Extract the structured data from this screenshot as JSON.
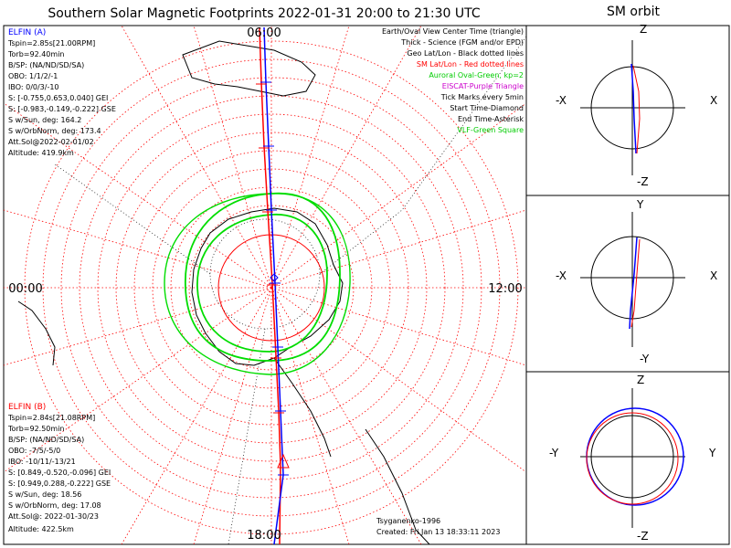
{
  "title": "Southern Solar Magnetic Footprints 2022-01-31 20:00 to 21:30 UTC",
  "orbit_title": "SM orbit",
  "clock_labels": {
    "top": "06:00",
    "left": "00:00",
    "right": "12:00",
    "bottom": "18:00"
  },
  "legend": {
    "earth_center": "Earth/Oval View Center Time (triangle)",
    "thick": "Thick - Science (FGM and/or EPD)",
    "geo": "Geo Lat/Lon - Black dotted lines",
    "sm": "SM Lat/Lon - Red dotted lines",
    "oval": "Auroral Oval-Green, kp=2",
    "eiscat": "EISCAT-Purple Triangle",
    "ticks": "Tick Marks every 5min",
    "start": "Start Time-Diamond",
    "end": "End Time-Asterisk",
    "vlf": "VLF-Green Square"
  },
  "elfin_a": {
    "name": "ELFIN (A)",
    "lines": [
      "Tspin=2.85s[21.00RPM]",
      "Torb=92.40min",
      "B/SP: (NA/ND/SD/SA)",
      "OBO: 1/1/2/-1",
      "IBO: 0/0/3/-10",
      "S: [-0.755,0.653,0.040] GEI",
      "S: [-0.983,-0.149,-0.222] GSE",
      "S w/Sun, deg: 164.2",
      "S w/OrbNorm, deg: 173.4",
      "Att.Sol@2022-02-01/02",
      "Altitude: 419.9km"
    ],
    "color": "#0000ff"
  },
  "elfin_b": {
    "name": "ELFIN (B)",
    "lines": [
      "Tspin=2.84s[21.08RPM]",
      "Torb=92.50min",
      "B/SP: (NA/ND/SD/SA)",
      "OBO: -7/5/-5/0",
      "IBO: -10/11/-13/21",
      "S: [0.849,-0.520,-0.096] GEI",
      "S: [0.949,0.288,-0.222] GSE",
      "S w/Sun, deg: 18.56",
      "S w/OrbNorm, deg: 17.08",
      "Att.Sol@: 2022-01-30/23",
      "Altitude: 422.5km"
    ],
    "color": "#ff0000"
  },
  "credits": {
    "author": "Tsyganenko-1996",
    "created": "Created: Fri Jan 13 18:33:11 2023"
  },
  "panels": [
    {
      "top": "Z",
      "bottom": "-Z",
      "left": "-X",
      "right": "X"
    },
    {
      "top": "Y",
      "bottom": "-Y",
      "left": "-X",
      "right": "X"
    },
    {
      "top": "Z",
      "bottom": "-Z",
      "left": "-Y",
      "right": "Y"
    }
  ],
  "colors": {
    "elfin_a": "#0000ff",
    "elfin_b": "#ff0000",
    "oval": "#00dd00",
    "sm_grid": "#ff0000",
    "geo_grid": "#000000"
  }
}
